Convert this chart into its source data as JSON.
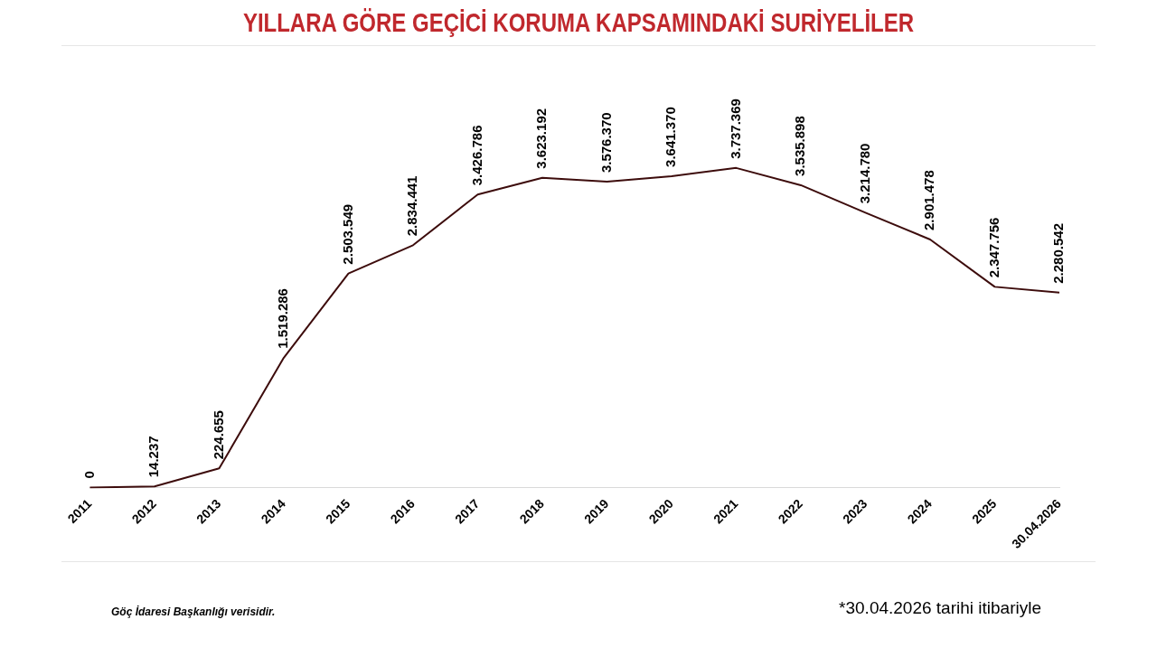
{
  "chart_data": {
    "type": "line",
    "title": "YILLARA GÖRE GEÇİCİ KORUMA KAPSAMINDAKİ SURİYELİLER",
    "categories": [
      "2011",
      "2012",
      "2013",
      "2014",
      "2015",
      "2016",
      "2017",
      "2018",
      "2019",
      "2020",
      "2021",
      "2022",
      "2023",
      "2024",
      "2025",
      "30.04.2026"
    ],
    "series": [
      {
        "color": "#3d0c0c",
        "values": [
          0,
          14237,
          224655,
          1519286,
          2503549,
          2834441,
          3426786,
          3623192,
          3576370,
          3641370,
          3737369,
          3535898,
          3214780,
          2901478,
          2347756,
          2280542
        ],
        "value_labels": [
          "0",
          "14.237",
          "224.655",
          "1.519.286",
          "2.503.549",
          "2.834.441",
          "3.426.786",
          "3.623.192",
          "3.576.370",
          "3.641.370",
          "3.737.369",
          "3.535.898",
          "3.214.780",
          "2.901.478",
          "2.347.756",
          "2.280.542"
        ]
      }
    ],
    "annotations": [
      "Göç İdaresi Başkanlığı verisidir.",
      "*30.04.2026 tarihi itibariyle"
    ],
    "grid": false,
    "legend": false,
    "marker": "none",
    "line_style": "solid",
    "tick_labels": "x"
  }
}
